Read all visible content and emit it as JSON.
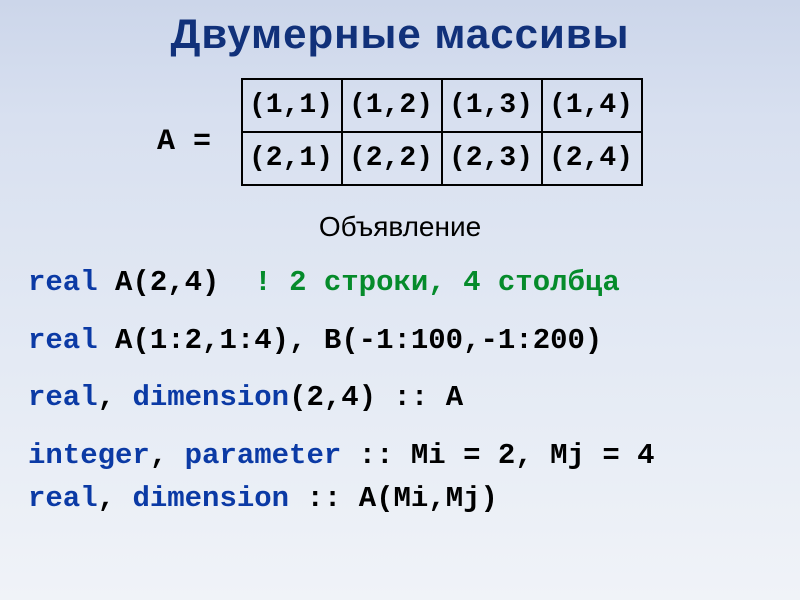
{
  "title": "Двумерные массивы",
  "matrix_label": "A =",
  "matrix": {
    "rows": [
      [
        "(1,1)",
        "(1,2)",
        "(1,3)",
        "(1,4)"
      ],
      [
        "(2,1)",
        "(2,2)",
        "(2,3)",
        "(2,4)"
      ]
    ],
    "cell_border_color": "#000000",
    "cell_fontsize": 28,
    "cell_font": "Courier New"
  },
  "subheading": "Объявление",
  "code": {
    "line1": {
      "kw": "real",
      "rest": " A(2,4)",
      "gap": "  ",
      "comment": "! 2 строки, 4 столбца"
    },
    "line2": {
      "kw": "real",
      "rest": " A(1:2,1:4), B(-1:100,-1:200)"
    },
    "line3": {
      "kw1": "real",
      "sep": ", ",
      "kw2": "dimension",
      "rest": "(2,4) :: A"
    },
    "line4": {
      "kw1": "integer",
      "sep1": ", ",
      "kw2": "parameter",
      "rest": " :: Mi = 2, Mj = 4"
    },
    "line5": {
      "kw1": "real",
      "sep": ", ",
      "kw2": "dimension",
      "rest": " :: A(Mi,Mj)"
    }
  },
  "colors": {
    "title": "#11317a",
    "keyword": "#0b3aa5",
    "comment": "#058b2b",
    "text": "#000000",
    "bg_top": "#ccd6ea",
    "bg_bottom": "#f0f3f8"
  }
}
